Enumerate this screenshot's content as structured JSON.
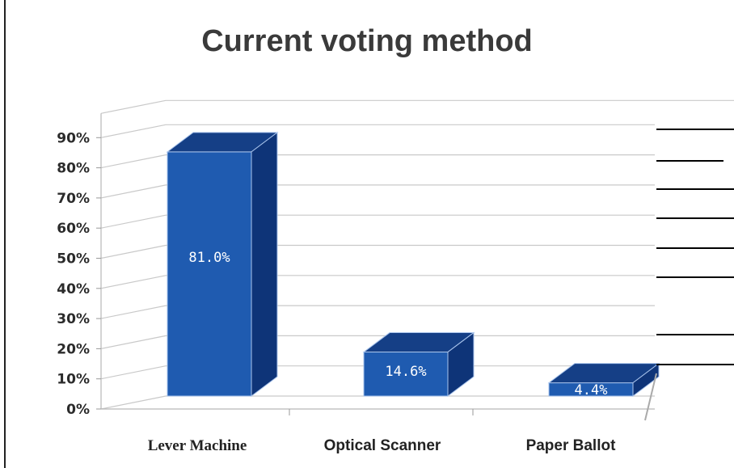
{
  "chart_data": {
    "type": "bar",
    "title": "Current voting method",
    "categories": [
      "Lever Machine",
      "Optical Scanner",
      "Paper Ballot"
    ],
    "values": [
      81.0,
      14.6,
      4.4
    ],
    "value_labels": [
      "81.0%",
      "14.6%",
      "4.4%"
    ],
    "ylim": [
      0,
      90
    ],
    "yticks": [
      "0%",
      "10%",
      "20%",
      "30%",
      "40%",
      "50%",
      "60%",
      "70%",
      "80%",
      "90%"
    ],
    "grid": true,
    "style": "3d",
    "colors": {
      "front": "#1f5bb0",
      "top": "#153f86",
      "side": "#0e3478",
      "edge": "#a9c4ec"
    }
  }
}
